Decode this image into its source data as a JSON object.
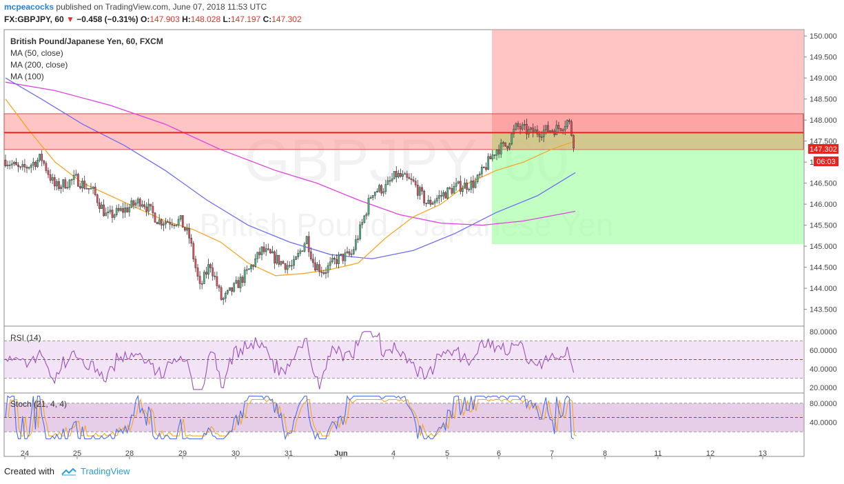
{
  "header": {
    "user": "mcpeacocks",
    "published": "published on TradingView.com, June 07, 2018 11:53 UTC",
    "symbol": "FX:GBPJPY, 60",
    "change": "−0.458 (−0.31%)",
    "open_label": "O:",
    "open": "147.903",
    "high_label": "H:",
    "high": "148.028",
    "low_label": "L:",
    "low": "147.197",
    "close_label": "C:",
    "close": "147.302"
  },
  "legend": {
    "title": "British Pound/Japanese Yen, 60, FXCM",
    "ma1": "MA (50, close)",
    "ma2": "MA (200, close)",
    "ma3": "MA (100)"
  },
  "watermark": {
    "big": "GBPJPY, 60",
    "small": "British Pound / Japanese Yen"
  },
  "rsi_label": "RSI (14)",
  "stoch_label": "Stoch (21, 4, 4)",
  "price_badge": "147.302",
  "timer_badge": "06:03",
  "footer": {
    "created": "Created with",
    "brand": "TradingView"
  },
  "colors": {
    "up": "#53b987",
    "down": "#eb4d5c",
    "ma50": "#f5a623",
    "ma100": "#6c6cf0",
    "ma200": "#e040e0",
    "resistance": "#ff0000",
    "stop_zone": "#ffb3b3",
    "target_zone": "#b3ffb3"
  },
  "chart_data": {
    "type": "candlestick",
    "y_axis": {
      "ticks": [
        "150.000",
        "149.500",
        "149.000",
        "148.500",
        "148.000",
        "147.500",
        "147.000",
        "146.500",
        "146.000",
        "145.500",
        "145.000",
        "144.500",
        "144.000",
        "143.500"
      ],
      "range": [
        143.1,
        150.15
      ]
    },
    "x_axis": {
      "ticks": [
        "24",
        "25",
        "28",
        "29",
        "30",
        "31",
        "Jun",
        "4",
        "5",
        "6",
        "7",
        "8",
        "11",
        "12",
        "13"
      ]
    },
    "resistance_line": 147.7,
    "resistance_zone": [
      147.3,
      148.15
    ],
    "position": {
      "entry": 147.7,
      "stop": 150.0,
      "target": 145.05,
      "start_day": "6"
    },
    "rsi": {
      "levels": [
        70,
        50,
        30
      ],
      "ticks": [
        "80.0000",
        "60.0000",
        "40.0000",
        "20.0000"
      ],
      "range": [
        15,
        85
      ]
    },
    "stoch": {
      "levels": [
        80,
        50,
        20
      ],
      "ticks": [
        "80.0000",
        "40.0000"
      ],
      "range": [
        0,
        100
      ]
    }
  }
}
